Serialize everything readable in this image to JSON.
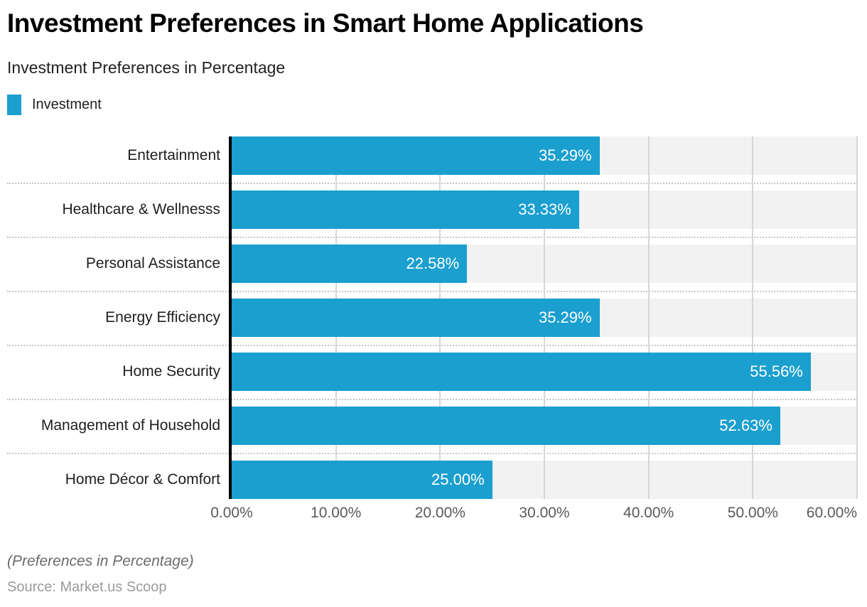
{
  "title": "Investment Preferences in Smart Home Applications",
  "subtitle": "Investment Preferences in Percentage",
  "legend": {
    "items": [
      {
        "label": "Investment",
        "color": "#1A9FCF"
      }
    ]
  },
  "chart_data": {
    "type": "bar",
    "orientation": "horizontal",
    "title": "Investment Preferences in Smart Home Applications",
    "subtitle": "Investment Preferences in Percentage",
    "categories": [
      "Entertainment",
      "Healthcare & Wellnesss",
      "Personal Assistance",
      "Energy Efficiency",
      "Home Security",
      "Management of Household",
      "Home Décor & Comfort"
    ],
    "series": [
      {
        "name": "Investment",
        "color": "#1A9FCF",
        "values": [
          35.29,
          33.33,
          22.58,
          35.29,
          55.56,
          52.63,
          25.0
        ]
      }
    ],
    "value_labels": [
      "35.29%",
      "33.33%",
      "22.58%",
      "35.29%",
      "55.56%",
      "52.63%",
      "25.00%"
    ],
    "x_axis": {
      "min": 0,
      "max": 60,
      "ticks": [
        {
          "value": 0,
          "label": "0.00%"
        },
        {
          "value": 10,
          "label": "10.00%"
        },
        {
          "value": 20,
          "label": "20.00%"
        },
        {
          "value": 30,
          "label": "30.00%"
        },
        {
          "value": 40,
          "label": "40.00%"
        },
        {
          "value": 50,
          "label": "50.00%"
        },
        {
          "value": 60,
          "label": "60.00%"
        }
      ]
    },
    "grid": {
      "vertical_gridlines": true,
      "row_separators": "dotted"
    },
    "legend_position": "top-left",
    "value_labels_position": "inside-end"
  },
  "footer": {
    "note": "(Preferences in Percentage)",
    "source": "Source: Market.us Scoop"
  },
  "colors": {
    "bar": "#1A9FCF",
    "track": "#F2F2F2",
    "gridline": "#D6D6D6",
    "separator": "#C6C6C6",
    "axis_line": "#000000",
    "tick_text": "#5A5A5A",
    "category_text": "#1E1E1E",
    "value_text": "#FFFFFF",
    "note_text": "#6B6B6B",
    "source_text": "#9B9B9B"
  }
}
